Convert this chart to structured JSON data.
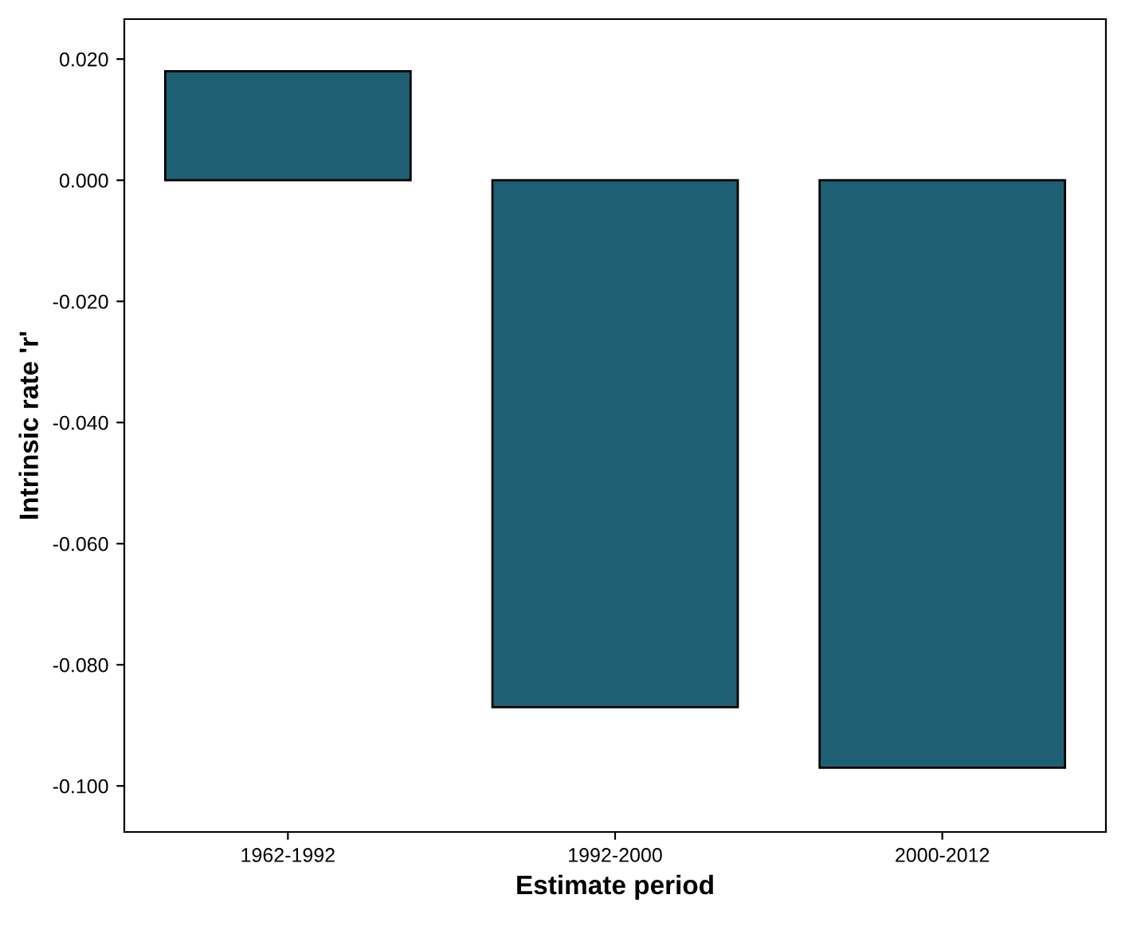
{
  "chart_data": {
    "type": "bar",
    "xlabel": "Estimate period",
    "ylabel": "Intrinsic rate 'r'",
    "categories": [
      "1962-1992",
      "1992-2000",
      "2000-2012"
    ],
    "values": [
      0.018,
      -0.087,
      -0.097
    ],
    "color": "#1f5f73",
    "ylim": [
      -0.1076,
      0.0266
    ],
    "yticks": [
      {
        "value": 0.02,
        "label": "0.020"
      },
      {
        "value": 0.0,
        "label": "0.000"
      },
      {
        "value": -0.02,
        "label": "-0.020"
      },
      {
        "value": -0.04,
        "label": "-0.040"
      },
      {
        "value": -0.06,
        "label": "-0.060"
      },
      {
        "value": -0.08,
        "label": "-0.080"
      },
      {
        "value": -0.1,
        "label": "-0.100"
      }
    ],
    "grid": false
  }
}
